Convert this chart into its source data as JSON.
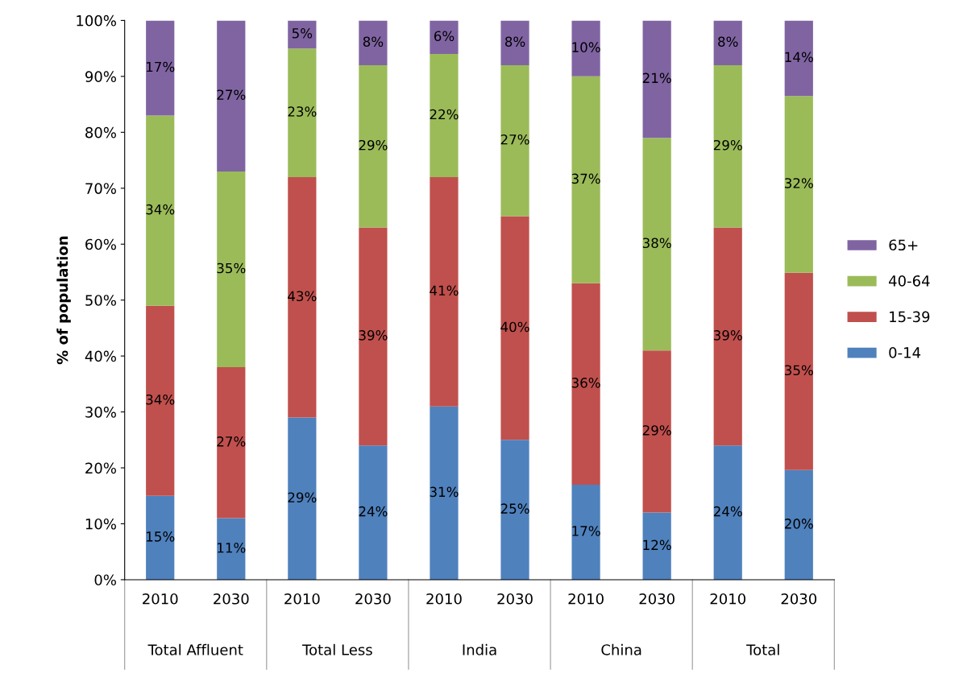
{
  "chart_data": {
    "type": "bar",
    "stacked": true,
    "ylabel": "% of population",
    "categories": [
      "2010",
      "2030",
      "2010",
      "2030",
      "2010",
      "2030",
      "2010",
      "2030",
      "2010",
      "2030"
    ],
    "annotations": [
      "Total Affluent",
      "Total Less",
      "India",
      "China",
      "Total"
    ],
    "series": [
      {
        "name": "0-14",
        "color": "#4f81bd",
        "values": [
          15,
          11,
          29,
          24,
          31,
          25,
          17,
          12,
          24,
          19.6
        ]
      },
      {
        "name": "15-39",
        "color": "#c0504d",
        "values": [
          34,
          27,
          43,
          39,
          41,
          40,
          36,
          29,
          39,
          35.3
        ]
      },
      {
        "name": "40-64",
        "color": "#9bbb59",
        "values": [
          34,
          35,
          23,
          29,
          22,
          27,
          37,
          38,
          29,
          31.6
        ]
      },
      {
        "name": "65+",
        "color": "#8064a2",
        "values": [
          17,
          27,
          5,
          8,
          6,
          8,
          10,
          21,
          8,
          13.5
        ]
      }
    ],
    "ylim": [
      0,
      100
    ],
    "yticks": [
      {
        "value": 0,
        "label": "0%"
      },
      {
        "value": 10,
        "label": "10%"
      },
      {
        "value": 20,
        "label": "20%"
      },
      {
        "value": 30,
        "label": "30%"
      },
      {
        "value": 40,
        "label": "40%"
      },
      {
        "value": 50,
        "label": "50%"
      },
      {
        "value": 60,
        "label": "60%"
      },
      {
        "value": 70,
        "label": "70%"
      },
      {
        "value": 80,
        "label": "80%"
      },
      {
        "value": 90,
        "label": "90%"
      },
      {
        "value": 100,
        "label": "100%"
      }
    ],
    "value_labels": [
      [
        "15%",
        "11%",
        "29%",
        "24%",
        "31%",
        "25%",
        "17%",
        "12%",
        "24%",
        "20%"
      ],
      [
        "34%",
        "27%",
        "43%",
        "39%",
        "41%",
        "40%",
        "36%",
        "29%",
        "39%",
        "35%"
      ],
      [
        "34%",
        "35%",
        "23%",
        "29%",
        "22%",
        "27%",
        "37%",
        "38%",
        "29%",
        "32%"
      ],
      [
        "17%",
        "27%",
        "5%",
        "8%",
        "6%",
        "8%",
        "10%",
        "21%",
        "8%",
        "14%"
      ]
    ],
    "legend": "right",
    "grid": false
  }
}
